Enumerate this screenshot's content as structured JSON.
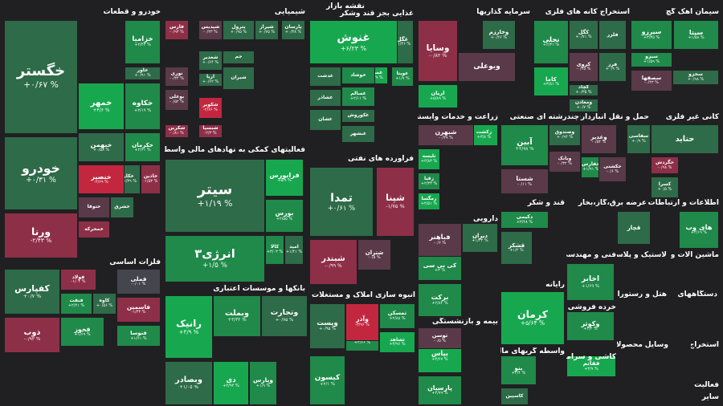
{
  "title": "نقشه بازار",
  "colors": {
    "background": "#202022",
    "strong_positive": "#17a84f",
    "positive": "#1f8a49",
    "weak_positive": "#2e6b48",
    "neutral": "#45454e",
    "weak_negative": "#5a3a48",
    "negative": "#8e2f48",
    "strong_negative": "#c3273f"
  },
  "sectors": [
    {
      "name": "خودرو و قطعات"
    },
    {
      "name": "شیمیایی"
    },
    {
      "name": "غذایی بجز قند وشکر"
    },
    {
      "name": "سرمایه گذاریها"
    },
    {
      "name": "استخراج کانه های فلزی"
    },
    {
      "name": "سیمان آهک گچ"
    },
    {
      "name": "فعالیتهای کمکی به نهادهای مالی واسط"
    },
    {
      "name": "فرآورده های نفتی"
    },
    {
      "name": "زراعت و خدمات وابسته"
    },
    {
      "name": "چندرشته ای صنعتی"
    },
    {
      "name": "حمل و نقل انبارداری و"
    },
    {
      "name": "کانی غیر فلزی"
    },
    {
      "name": "فلزات اساسی"
    },
    {
      "name": "دارویی"
    },
    {
      "name": "قند و شکر"
    },
    {
      "name": "عرضه برق،گاز،بخار"
    },
    {
      "name": "اطلاعات و ارتباطات"
    },
    {
      "name": "لاستیک و پلاستیک"
    },
    {
      "name": "فنی و مهندسی"
    },
    {
      "name": "ماشین آلات و"
    },
    {
      "name": "بانکها و موسسات اعتباری"
    },
    {
      "name": "انبوه سازی املاک و مستغلات"
    },
    {
      "name": "رایانه"
    },
    {
      "name": "بیمه و بازنشستگی"
    },
    {
      "name": "خرده فروشی"
    },
    {
      "name": "دستگاههای"
    },
    {
      "name": "هتل و رستوران"
    },
    {
      "name": "واسطه گریهای مالی و"
    },
    {
      "name": "کاشی و سرامیک"
    },
    {
      "name": "محصولات"
    },
    {
      "name": "استخراج"
    },
    {
      "name": "وسایل"
    },
    {
      "name": "فعالیت"
    },
    {
      "name": "سایر"
    }
  ],
  "chart_data": {
    "type": "heatmap",
    "cells": [
      {
        "name": "خگستر",
        "value": "+۰/۶۷ %",
        "change": 0.67
      },
      {
        "name": "خودرو",
        "value": "+۰/۳۱ %",
        "change": 0.31
      },
      {
        "name": "ورنا",
        "value": "-۲/۴۳ %",
        "change": -2.43
      },
      {
        "name": "خزامیا",
        "value": "+۲/۴۳ %",
        "change": 2.43
      },
      {
        "name": "خاور",
        "value": "+۰/۹۱ %",
        "change": 0.91
      },
      {
        "name": "خمهر",
        "value": "+۴/۶ %",
        "change": 4.6
      },
      {
        "name": "خکاوه",
        "value": "+۳/۱۹ %",
        "change": 3.19
      },
      {
        "name": "خبهمن",
        "value": "+۰/۵۸ %",
        "change": 0.58
      },
      {
        "name": "خکرمان",
        "value": "+۲/۶۱ %",
        "change": 2.61
      },
      {
        "name": "خنصیر",
        "value": "-۲/۶۹ %",
        "change": -2.69
      },
      {
        "name": "خکار",
        "value": "+۱/۳۹ %",
        "change": 1.39
      },
      {
        "name": "خاذین",
        "value": "-۱/۵۳ %",
        "change": -1.53
      },
      {
        "name": "ختوقا",
        "value": "",
        "change": -0.5
      },
      {
        "name": "خشرق",
        "value": "",
        "change": 0.2
      },
      {
        "name": "خمحرکه",
        "value": "",
        "change": -1.2
      },
      {
        "name": "فارس",
        "value": "-۰/۹۳ %",
        "change": -0.93
      },
      {
        "name": "شپدیس",
        "value": "-۰/۴۳ %",
        "change": -0.43
      },
      {
        "name": "پترول",
        "value": "+۰/۹۵ %",
        "change": 0.95
      },
      {
        "name": "شیراز",
        "value": "+۰/۷۵ %",
        "change": 0.75
      },
      {
        "name": "پارسان",
        "value": "+۰/۳۸ %",
        "change": 0.38
      },
      {
        "name": "نوری",
        "value": "-۰/۳۴ %",
        "change": -0.34
      },
      {
        "name": "شغدیر",
        "value": "+۰/۶۴ %",
        "change": 0.64
      },
      {
        "name": "جم",
        "value": "",
        "change": 0.3
      },
      {
        "name": "آریا",
        "value": "+۰/۶۲ %",
        "change": 0.62
      },
      {
        "name": "شیران",
        "value": "",
        "change": 0.2
      },
      {
        "name": "بوعلی",
        "value": "-۰/۵۲ %",
        "change": -0.52
      },
      {
        "name": "شکویر",
        "value": "-۲/۶۶ %",
        "change": -2.66
      },
      {
        "name": "شکربن",
        "value": "-۰/۸۱ %",
        "change": -0.81
      },
      {
        "name": "شبسپا",
        "value": "-۲/۳ %",
        "change": -2.3
      },
      {
        "name": "غنوش",
        "value": "+۶/۲۳ %",
        "change": 6.23
      },
      {
        "name": "غگل",
        "value": "+۱/۴۶ %",
        "change": 1.46
      },
      {
        "name": "خوشاد",
        "value": "",
        "change": 1.5
      },
      {
        "name": "غدشت",
        "value": "",
        "change": 0.3
      },
      {
        "name": "غسالم",
        "value": "+۲/۱۱ %",
        "change": 2.11
      },
      {
        "name": "غمینو",
        "value": "+۴/۹ %",
        "change": 4.9
      },
      {
        "name": "غویتا",
        "value": "+۱/۹ %",
        "change": 1.9
      },
      {
        "name": "غکوروش",
        "value": "",
        "change": 0.4
      },
      {
        "name": "غشاذر",
        "value": "",
        "change": 0.2
      },
      {
        "name": "غبشهر",
        "value": "",
        "change": 1.2
      },
      {
        "name": "غشان",
        "value": "",
        "change": 1.0
      },
      {
        "name": "وسایا",
        "value": "-۰/۸۲ %",
        "change": -0.82
      },
      {
        "name": "وخارزم",
        "value": "+۰/۲۶ %",
        "change": 0.26
      },
      {
        "name": "وبوعلی",
        "value": "",
        "change": -0.2
      },
      {
        "name": "اریان",
        "value": "+۵/۸۹ %",
        "change": 5.89
      },
      {
        "name": "فلزر",
        "value": "",
        "change": 0.3
      },
      {
        "name": "تجلی",
        "value": "+۲/۳۱ %",
        "change": 2.31
      },
      {
        "name": "کگل",
        "value": "+۰/۷۱ %",
        "change": 0.71
      },
      {
        "name": "فرز",
        "value": "+۰/۹ %",
        "change": 0.9
      },
      {
        "name": "کروی",
        "value": "-۰/۳۵ %",
        "change": -0.35
      },
      {
        "name": "کچاد",
        "value": "+۰/۳۵ %",
        "change": 0.35
      },
      {
        "name": "کاما",
        "value": "+۳/۸۱ %",
        "change": 3.81
      },
      {
        "name": "ومعادن",
        "value": "+۰/۷ %",
        "change": 0.7
      },
      {
        "name": "سیتا",
        "value": "+۱/۵۸ %",
        "change": 1.58
      },
      {
        "name": "سیرزو",
        "value": "+۳/۳۵ %",
        "change": 3.35
      },
      {
        "name": "سبزو",
        "value": "+۱/۵۹ %",
        "change": 1.59
      },
      {
        "name": "سصفها",
        "value": "-۰/۴۳ %",
        "change": -0.43
      },
      {
        "name": "سخزو",
        "value": "+۰/۹۸ %",
        "change": 0.98
      },
      {
        "name": "سیتر",
        "value": "+۱/۱۹ %",
        "change": 1.19
      },
      {
        "name": "فرابورس",
        "value": "+۵/۹ %",
        "change": 5.9
      },
      {
        "name": "بورس",
        "value": "+۲/۵۵ %",
        "change": 2.55
      },
      {
        "name": "انرژی۳",
        "value": "+۱/۵ %",
        "change": 1.5
      },
      {
        "name": "کالا",
        "value": "+۳/۰۳ %",
        "change": 3.03
      },
      {
        "name": "امید",
        "value": "+۱/۴۱ %",
        "change": 1.41
      },
      {
        "name": "تمدا",
        "value": "+۰/۶۱ %",
        "change": 0.61
      },
      {
        "name": "شپنا",
        "value": "-۱/۷۵ %",
        "change": -1.75
      },
      {
        "name": "شبندر",
        "value": "-۰/۹۹ %",
        "change": -0.99
      },
      {
        "name": "شتران",
        "value": "-۰/۵ %",
        "change": -0.5
      },
      {
        "name": "شبهرن",
        "value": "-۰/۳۹ %",
        "change": -0.39
      },
      {
        "name": "تلیسه",
        "value": "+۳/۸۳ %",
        "change": 3.83
      },
      {
        "name": "زقیا",
        "value": "+۲/۳۳ %",
        "change": 2.33
      },
      {
        "name": "زمگسا",
        "value": "+۴/۵۱ %",
        "change": 4.51
      },
      {
        "name": "زکشت",
        "value": "+۳/۸ %",
        "change": 3.8
      },
      {
        "name": "آبین",
        "value": "+۲/۹۸ %",
        "change": 2.98
      },
      {
        "name": "شستا",
        "value": "-۰/۱۱ %",
        "change": -0.11
      },
      {
        "name": "وبانک",
        "value": "-۰/۳۲ %",
        "change": -0.32
      },
      {
        "name": "وصندوق",
        "value": "+۰/۹۴ %",
        "change": 0.94
      },
      {
        "name": "وغدیر",
        "value": "-۰/۵۴ %",
        "change": -0.54
      },
      {
        "name": "حکشتی",
        "value": "-۰/۶ %",
        "change": -0.6
      },
      {
        "name": "حفارس",
        "value": "+۱/۹۱ %",
        "change": 1.91
      },
      {
        "name": "حتاید",
        "value": "",
        "change": 0.5
      },
      {
        "name": "سفاسی",
        "value": "+۰/۹ %",
        "change": 0.9
      },
      {
        "name": "حگردش",
        "value": "-۰/۹۸ %",
        "change": -0.98
      },
      {
        "name": "کسرا",
        "value": "+۰/۵ %",
        "change": 0.5
      },
      {
        "name": "کفپارس",
        "value": "+۰/۷ %",
        "change": 0.7
      },
      {
        "name": "فولاد",
        "value": "-۱/۰۴ %",
        "change": -1.04
      },
      {
        "name": "ذوب",
        "value": "-۰/۹۳ %",
        "change": -0.93
      },
      {
        "name": "فملی",
        "value": "-۰/۰۱ %",
        "change": -0.01
      },
      {
        "name": "فنفت",
        "value": "+۲/۲۱ %",
        "change": 2.21
      },
      {
        "name": "کاوه",
        "value": "+۰/۵۶ %",
        "change": 0.56
      },
      {
        "name": "فاسمین",
        "value": "-۱/۴۳ %",
        "change": -1.43
      },
      {
        "name": "فخوز",
        "value": "+۱/۶۹ %",
        "change": 1.69
      },
      {
        "name": "فنوسا",
        "value": "+۱/۶۱ %",
        "change": 1.61
      },
      {
        "name": "فباهنر",
        "value": "-۰/۶ %",
        "change": -0.6
      },
      {
        "name": "دیران",
        "value": "+۱/۳۴ %",
        "change": 1.34
      },
      {
        "name": "کی بی سی",
        "value": "+۳ %",
        "change": 3.0
      },
      {
        "name": "برکت",
        "value": "+۲/۸۴ %",
        "change": 2.84
      },
      {
        "name": "دکیمی",
        "value": "+۳/۲۸ %",
        "change": 3.28
      },
      {
        "name": "قشکر",
        "value": "+۱/۲ %",
        "change": 1.2
      },
      {
        "name": "قچار",
        "value": "",
        "change": 0.2
      },
      {
        "name": "های وب",
        "value": "+۲/۱۹ %",
        "change": 2.19
      },
      {
        "name": "اخابر",
        "value": "+۱/۶۹ %",
        "change": 1.69
      },
      {
        "name": "رانیک",
        "value": "+۳/۹ %",
        "change": 3.9
      },
      {
        "name": "وبملت",
        "value": "+۳/۳۲ %",
        "change": 3.32
      },
      {
        "name": "وتجارت",
        "value": "+۰/۷۵ %",
        "change": 0.75
      },
      {
        "name": "وبصادر",
        "value": "+۱/۰۵ %",
        "change": 1.05
      },
      {
        "name": "دی",
        "value": "+۴/۹۴ %",
        "change": 4.94
      },
      {
        "name": "وپارس",
        "value": "+۱/۹ %",
        "change": 1.9
      },
      {
        "name": "وپست",
        "value": "+۰/۹۵ %",
        "change": 0.95
      },
      {
        "name": "وآذر",
        "value": "-۳/۹۶ %",
        "change": -3.96
      },
      {
        "name": "ثمسکن",
        "value": "+۲/۸۸ %",
        "change": 2.88
      },
      {
        "name": "ثفرب",
        "value": "+۲/۶۶ %",
        "change": 2.66
      },
      {
        "name": "ثشاهد",
        "value": "+۳/۹۶ %",
        "change": 3.96
      },
      {
        "name": "کیسون",
        "value": "+۲/۱ %",
        "change": 2.1
      },
      {
        "name": "کرمان",
        "value": "+۵/۶۴ %",
        "change": 5.64
      },
      {
        "name": "توسن",
        "value": "-۰/۵ %",
        "change": -0.5
      },
      {
        "name": "بپاس",
        "value": "+۳/۶۷ %",
        "change": 3.67
      },
      {
        "name": "پارسیان",
        "value": "+۲/۷۹ %",
        "change": 2.79
      },
      {
        "name": "بنو",
        "value": "+۲/۴ %",
        "change": 2.4
      },
      {
        "name": "وکوثر",
        "value": "+۲/۴ %",
        "change": 2.4
      },
      {
        "name": "فقانم",
        "value": "+۳/۹ %",
        "change": 3.9
      },
      {
        "name": "کاسپین",
        "value": "",
        "change": 1.2
      },
      {
        "name": "ولقادر",
        "value": "+۴/۶۵ %",
        "change": 4.65
      }
    ]
  }
}
